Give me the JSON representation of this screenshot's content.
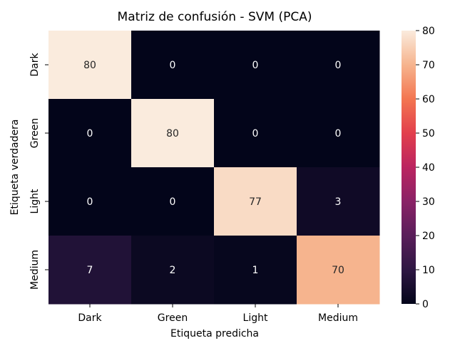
{
  "chart_data": {
    "type": "heatmap",
    "title": "Matriz de confusión - SVM (PCA)",
    "xlabel": "Etiqueta predicha",
    "ylabel": "Etiqueta verdadera",
    "x_categories": [
      "Dark",
      "Green",
      "Light",
      "Medium"
    ],
    "y_categories": [
      "Dark",
      "Green",
      "Light",
      "Medium"
    ],
    "values": [
      [
        80,
        0,
        0,
        0
      ],
      [
        0,
        80,
        0,
        0
      ],
      [
        0,
        0,
        77,
        3
      ],
      [
        7,
        2,
        1,
        70
      ]
    ],
    "colorbar": {
      "min": 0,
      "max": 80,
      "ticks": [
        0,
        10,
        20,
        30,
        40,
        50,
        60,
        70,
        80
      ],
      "colormap": "rocket"
    }
  }
}
